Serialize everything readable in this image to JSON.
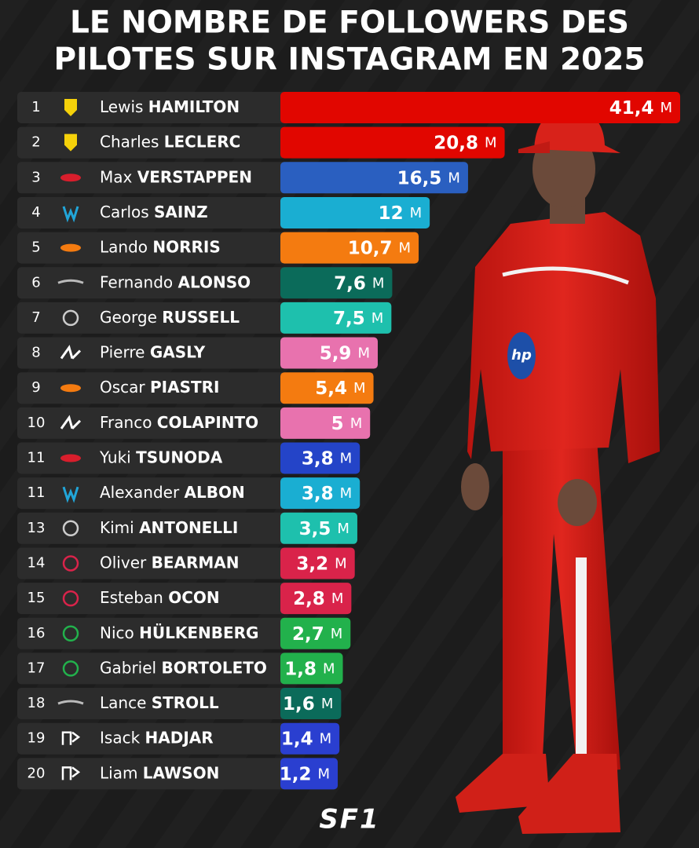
{
  "chart_data": {
    "type": "bar",
    "orientation": "horizontal",
    "title": "LE NOMBRE DE FOLLOWERS DES",
    "subtitle": "PILOTES SUR INSTAGRAM EN 2025",
    "ranks": [
      1,
      2,
      3,
      4,
      5,
      6,
      7,
      8,
      9,
      10,
      11,
      11,
      13,
      14,
      15,
      16,
      17,
      18,
      19,
      20
    ],
    "first_names": [
      "Lewis",
      "Charles",
      "Max",
      "Carlos",
      "Lando",
      "Fernando",
      "George",
      "Pierre",
      "Oscar",
      "Franco",
      "Yuki",
      "Alexander",
      "Kimi",
      "Oliver",
      "Esteban",
      "Nico",
      "Gabriel",
      "Lance",
      "Isack",
      "Liam"
    ],
    "last_names": [
      "HAMILTON",
      "LECLERC",
      "VERSTAPPEN",
      "SAINZ",
      "NORRIS",
      "ALONSO",
      "RUSSELL",
      "GASLY",
      "PIASTRI",
      "COLAPINTO",
      "TSUNODA",
      "ALBON",
      "ANTONELLI",
      "BEARMAN",
      "OCON",
      "HÜLKENBERG",
      "BORTOLETO",
      "STROLL",
      "HADJAR",
      "LAWSON"
    ],
    "values": [
      41.4,
      20.8,
      16.5,
      12,
      10.7,
      7.6,
      7.5,
      5.9,
      5.4,
      5,
      3.8,
      3.8,
      3.5,
      3.2,
      2.8,
      2.7,
      1.8,
      1.6,
      1.4,
      1.2
    ],
    "value_labels": [
      "41,4",
      "20,8",
      "16,5",
      "12",
      "10,7",
      "7,6",
      "7,5",
      "5,9",
      "5,4",
      "5",
      "3,8",
      "3,8",
      "3,5",
      "3,2",
      "2,8",
      "2,7",
      "1,8",
      "1,6",
      "1,4",
      "1,2"
    ],
    "unit": "M",
    "colors": [
      "#e10600",
      "#e10600",
      "#2a5fc0",
      "#1aaed2",
      "#f47b10",
      "#0b6b5a",
      "#1ec0ad",
      "#e872ae",
      "#f47b10",
      "#e872ae",
      "#2444c8",
      "#1aaed2",
      "#1ec0ad",
      "#d9234a",
      "#d9234a",
      "#22b14c",
      "#22b14c",
      "#0b6b5a",
      "#2a3fd0",
      "#2a3fd0"
    ],
    "xlim": [
      0,
      41.4
    ],
    "logo": "SF1"
  }
}
